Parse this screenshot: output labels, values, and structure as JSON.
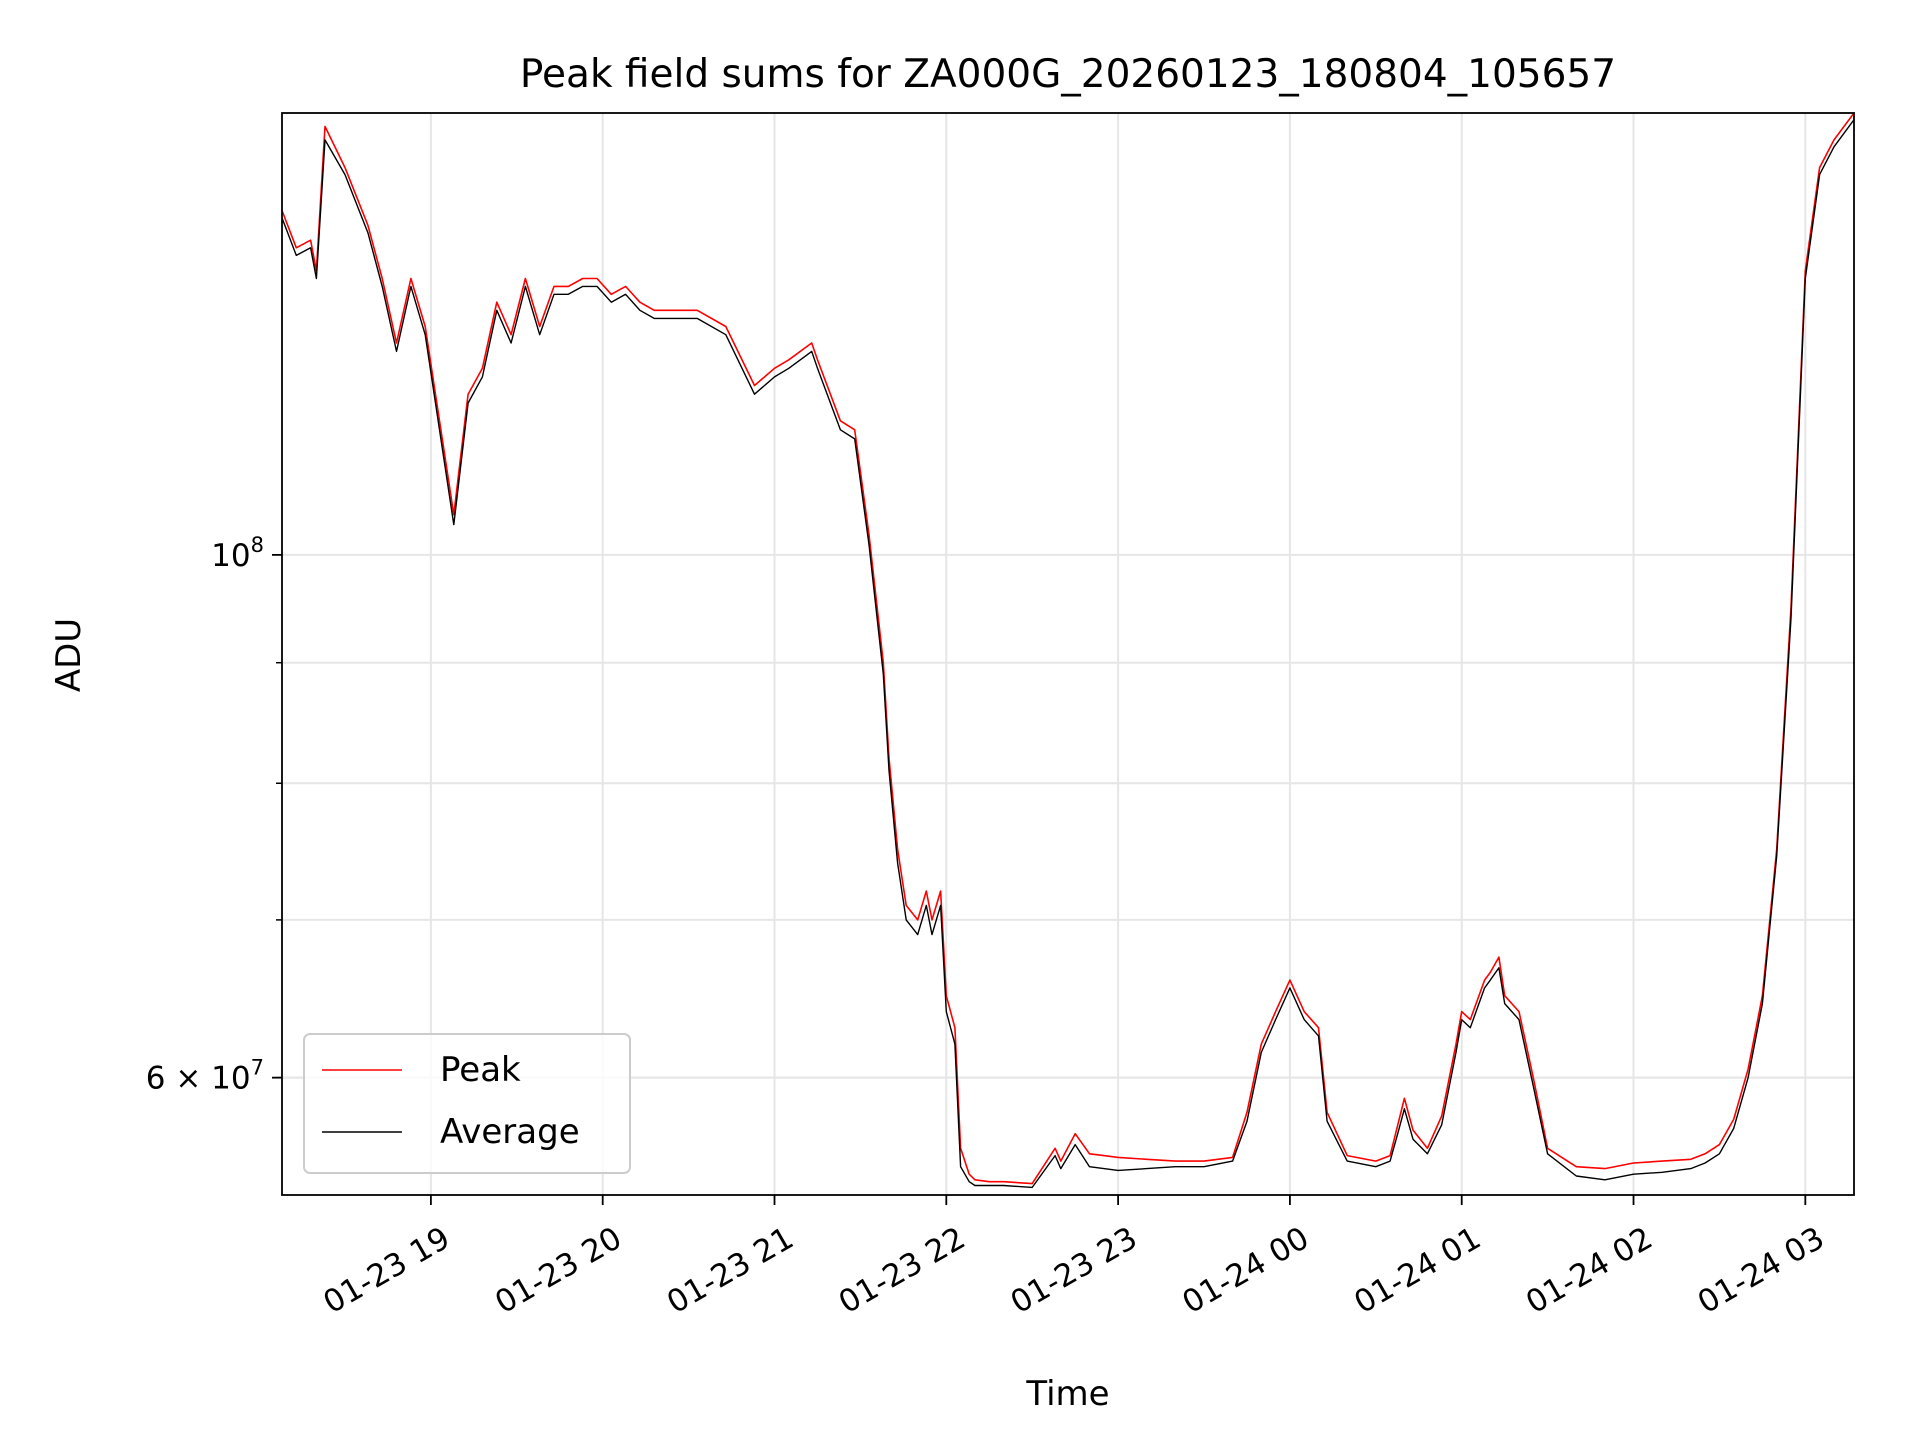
{
  "chart_data": {
    "type": "line",
    "title": "Peak field sums for ZA000G_20260123_180804_105657",
    "xlabel": "Time",
    "ylabel": "ADU",
    "yscale": "log",
    "grid": true,
    "legend_position": "lower-left",
    "xlim": [
      "2026-01-23 18:08",
      "2026-01-24 03:17"
    ],
    "ylim": [
      53500000,
      154000000
    ],
    "x_ticks": [
      {
        "t": "2026-01-23 19:00",
        "label": "01-23 19"
      },
      {
        "t": "2026-01-23 20:00",
        "label": "01-23 20"
      },
      {
        "t": "2026-01-23 21:00",
        "label": "01-23 21"
      },
      {
        "t": "2026-01-23 22:00",
        "label": "01-23 22"
      },
      {
        "t": "2026-01-23 23:00",
        "label": "01-23 23"
      },
      {
        "t": "2026-01-24 00:00",
        "label": "01-24 00"
      },
      {
        "t": "2026-01-24 01:00",
        "label": "01-24 01"
      },
      {
        "t": "2026-01-24 02:00",
        "label": "01-24 02"
      },
      {
        "t": "2026-01-24 03:00",
        "label": "01-24 03"
      }
    ],
    "y_major_ticks": [
      {
        "v": 100000000,
        "label": "10",
        "exp": "8"
      },
      {
        "v": 60000000,
        "label": "6 × 10",
        "exp": "7"
      }
    ],
    "y_minor_ticks": [
      60000000,
      70000000,
      80000000,
      90000000
    ],
    "x_time_labels": [
      "18:08",
      "18:13",
      "18:18",
      "18:20",
      "18:23",
      "18:30",
      "18:38",
      "18:43",
      "18:48",
      "18:53",
      "18:58",
      "19:03",
      "19:08",
      "19:13",
      "19:18",
      "19:23",
      "19:28",
      "19:33",
      "19:38",
      "19:43",
      "19:48",
      "19:53",
      "19:58",
      "20:03",
      "20:08",
      "20:13",
      "20:18",
      "20:23",
      "20:33",
      "20:43",
      "20:53",
      "21:00",
      "21:05",
      "21:13",
      "21:15",
      "21:23",
      "21:28",
      "21:33",
      "21:38",
      "21:40",
      "21:43",
      "21:46",
      "21:50",
      "21:53",
      "21:55",
      "21:58",
      "22:00",
      "22:03",
      "22:05",
      "22:08",
      "22:10",
      "22:15",
      "22:20",
      "22:30",
      "22:38",
      "22:40",
      "22:45",
      "22:50",
      "22:55",
      "23:00",
      "23:10",
      "23:20",
      "23:30",
      "23:40",
      "23:45",
      "23:50",
      "23:55",
      "00:00",
      "00:05",
      "00:10",
      "00:13",
      "00:20",
      "00:30",
      "00:35",
      "00:38",
      "00:40",
      "00:43",
      "00:48",
      "00:53",
      "00:58",
      "01:00",
      "01:03",
      "01:08",
      "01:10",
      "01:13",
      "01:15",
      "01:20",
      "01:25",
      "01:30",
      "01:40",
      "01:50",
      "02:00",
      "02:10",
      "02:20",
      "02:25",
      "02:30",
      "02:35",
      "02:40",
      "02:45",
      "02:50",
      "02:55",
      "03:00",
      "03:05",
      "03:10",
      "03:17"
    ],
    "series": [
      {
        "name": "Peak",
        "color": "#ff0000",
        "values": [
          140000000,
          135000000,
          136000000,
          132000000,
          152000000,
          146000000,
          138000000,
          131000000,
          123000000,
          131000000,
          125000000,
          114000000,
          104000000,
          117000000,
          120000000,
          128000000,
          124000000,
          131000000,
          125000000,
          130000000,
          130000000,
          131000000,
          131000000,
          129000000,
          130000000,
          128000000,
          127000000,
          127000000,
          127000000,
          125000000,
          118000000,
          120000000,
          121000000,
          123000000,
          121000000,
          114000000,
          113000000,
          102000000,
          90000000,
          82000000,
          75000000,
          71000000,
          70000000,
          72000000,
          70000000,
          72000000,
          65000000,
          63000000,
          56000000,
          54600000,
          54300000,
          54200000,
          54200000,
          54100000,
          56000000,
          55300000,
          56800000,
          55700000,
          55600000,
          55500000,
          55400000,
          55300000,
          55300000,
          55500000,
          58000000,
          62000000,
          64000000,
          66000000,
          64000000,
          63000000,
          58000000,
          55600000,
          55300000,
          55600000,
          57500000,
          58800000,
          57000000,
          56000000,
          57800000,
          62000000,
          64000000,
          63500000,
          66000000,
          66500000,
          67500000,
          65000000,
          64000000,
          60000000,
          56000000,
          55000000,
          54900000,
          55200000,
          55300000,
          55400000,
          55700000,
          56200000,
          57600000,
          60500000,
          65000000,
          75000000,
          95000000,
          132000000,
          146000000,
          150000000,
          154000000
        ]
      },
      {
        "name": "Average",
        "color": "#000000",
        "values": [
          139000000,
          134000000,
          135000000,
          131000000,
          150000000,
          145000000,
          137000000,
          130000000,
          122000000,
          130000000,
          124000000,
          113000000,
          103000000,
          116000000,
          119000000,
          127000000,
          123000000,
          130000000,
          124000000,
          129000000,
          129000000,
          130000000,
          130000000,
          128000000,
          129000000,
          127000000,
          126000000,
          126000000,
          126000000,
          124000000,
          117000000,
          119000000,
          120000000,
          122000000,
          120000000,
          113000000,
          112000000,
          101000000,
          89000000,
          81000000,
          74000000,
          70000000,
          69000000,
          71000000,
          69000000,
          71000000,
          64000000,
          62000000,
          55000000,
          54200000,
          54000000,
          54000000,
          54000000,
          53900000,
          55600000,
          54900000,
          56200000,
          55000000,
          54900000,
          54800000,
          54900000,
          55000000,
          55000000,
          55300000,
          57500000,
          61500000,
          63500000,
          65500000,
          63500000,
          62500000,
          57500000,
          55300000,
          55000000,
          55300000,
          57000000,
          58200000,
          56500000,
          55700000,
          57300000,
          61500000,
          63500000,
          63000000,
          65500000,
          66000000,
          66800000,
          64500000,
          63500000,
          59500000,
          55700000,
          54500000,
          54300000,
          54600000,
          54700000,
          54900000,
          55200000,
          55700000,
          57100000,
          60000000,
          64500000,
          74500000,
          94000000,
          131000000,
          145000000,
          149000000,
          153000000
        ]
      }
    ]
  }
}
